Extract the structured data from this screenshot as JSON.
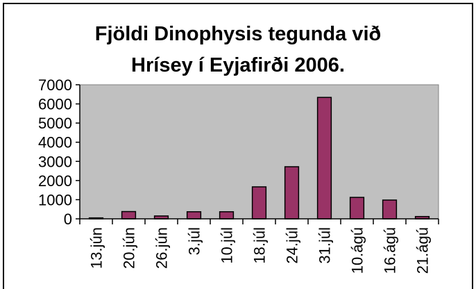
{
  "chart_data": {
    "type": "bar",
    "title": [
      "Fjöldi Dinophysis tegunda við",
      "Hrísey í Eyjafirði 2006."
    ],
    "categories": [
      "13.jún",
      "20.jún",
      "26.jún",
      "3.júl",
      "10.júl",
      "18.júl",
      "24.júl",
      "31.júl",
      "10.ágú",
      "16.ágú",
      "21.ágú"
    ],
    "values": [
      50,
      380,
      150,
      370,
      370,
      1670,
      2720,
      6340,
      1120,
      980,
      120
    ],
    "color": "#993366",
    "ylim": [
      0,
      7000
    ],
    "yticks": [
      0,
      1000,
      2000,
      3000,
      4000,
      5000,
      6000,
      7000
    ],
    "grid": false
  }
}
